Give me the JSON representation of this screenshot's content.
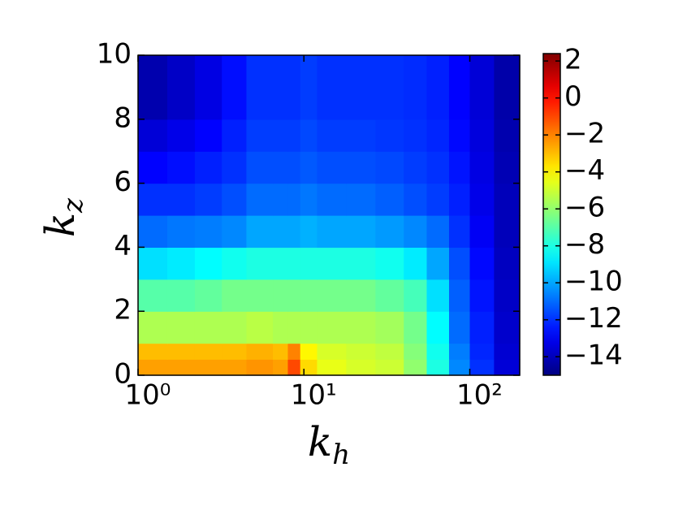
{
  "chart_data": {
    "type": "heatmap",
    "colormap": "jet",
    "xlabel": {
      "base": "k",
      "sub": "h"
    },
    "ylabel": {
      "base": "k",
      "sub": "z"
    },
    "xscale": "log",
    "xlim": [
      1,
      200
    ],
    "ylim": [
      0,
      10
    ],
    "xticks": [
      {
        "value": 1,
        "label": "10⁰"
      },
      {
        "value": 10,
        "label": "10¹"
      },
      {
        "value": 100,
        "label": "10²"
      }
    ],
    "yticks": [
      0,
      2,
      4,
      6,
      8,
      10
    ],
    "x_edges": [
      1,
      1.5,
      2.2,
      3.2,
      4.5,
      6.5,
      8,
      9.5,
      12,
      18,
      27,
      40,
      55,
      75,
      100,
      140,
      200
    ],
    "y_edges": [
      0,
      0.5,
      1,
      2,
      3,
      4,
      5,
      6,
      7,
      8,
      10
    ],
    "z": [
      [
        -2.5,
        -2.5,
        -2.5,
        -2.5,
        -2.3,
        -2.5,
        -1,
        -3.5,
        -4.5,
        -4.8,
        -5,
        -6,
        -8,
        -10.5,
        -12,
        -13.5
      ],
      [
        -3,
        -3,
        -3,
        -3,
        -2.8,
        -3,
        -2,
        -4,
        -4.8,
        -5,
        -5.2,
        -6.2,
        -8.2,
        -10.7,
        -12.2,
        -13.6
      ],
      [
        -5.5,
        -5.5,
        -5.5,
        -5.5,
        -5.3,
        -5.5,
        -5.5,
        -5.5,
        -5.5,
        -5.5,
        -5.7,
        -6.5,
        -8.5,
        -11,
        -12.3,
        -13.7
      ],
      [
        -7,
        -7,
        -6.8,
        -6.5,
        -6.5,
        -6.5,
        -6.5,
        -6.5,
        -6.5,
        -6.5,
        -6.8,
        -7.3,
        -9,
        -11.2,
        -12.5,
        -13.8
      ],
      [
        -9,
        -8.8,
        -8.5,
        -8.2,
        -8,
        -8,
        -8,
        -8,
        -8,
        -8,
        -8.2,
        -8.8,
        -10,
        -11.5,
        -12.7,
        -13.9
      ],
      [
        -11,
        -10.8,
        -10.7,
        -10.5,
        -10,
        -10,
        -10,
        -9.8,
        -10,
        -10,
        -10.2,
        -10.5,
        -11,
        -12,
        -13,
        -14
      ],
      [
        -12,
        -12,
        -11.8,
        -11.5,
        -11,
        -11,
        -11,
        -10.8,
        -11,
        -11,
        -11.2,
        -11.5,
        -11.8,
        -12.3,
        -13.2,
        -14
      ],
      [
        -12.8,
        -12.6,
        -12.3,
        -12,
        -11.5,
        -11.5,
        -11.5,
        -11.3,
        -11.5,
        -11.5,
        -11.6,
        -11.8,
        -12,
        -12.5,
        -13.3,
        -14.1
      ],
      [
        -13.5,
        -13.2,
        -12.8,
        -12.3,
        -11.8,
        -11.8,
        -11.8,
        -11.6,
        -11.8,
        -11.8,
        -11.9,
        -12,
        -12.2,
        -12.7,
        -13.4,
        -14.2
      ],
      [
        -14.2,
        -13.8,
        -13.3,
        -12.6,
        -12,
        -12,
        -12,
        -11.8,
        -12,
        -12,
        -12,
        -12.1,
        -12.3,
        -12.8,
        -13.5,
        -14.3
      ]
    ],
    "colorbar": {
      "lim": [
        -15,
        2.4
      ],
      "ticks": [
        2,
        0,
        {
          "value": -2,
          "label": "−2"
        },
        {
          "value": -4,
          "label": "−4"
        },
        {
          "value": -6,
          "label": "−6"
        },
        {
          "value": -8,
          "label": "−8"
        },
        {
          "value": -10,
          "label": "−10"
        },
        {
          "value": -12,
          "label": "−12"
        },
        {
          "value": -14,
          "label": "−14"
        }
      ]
    }
  }
}
